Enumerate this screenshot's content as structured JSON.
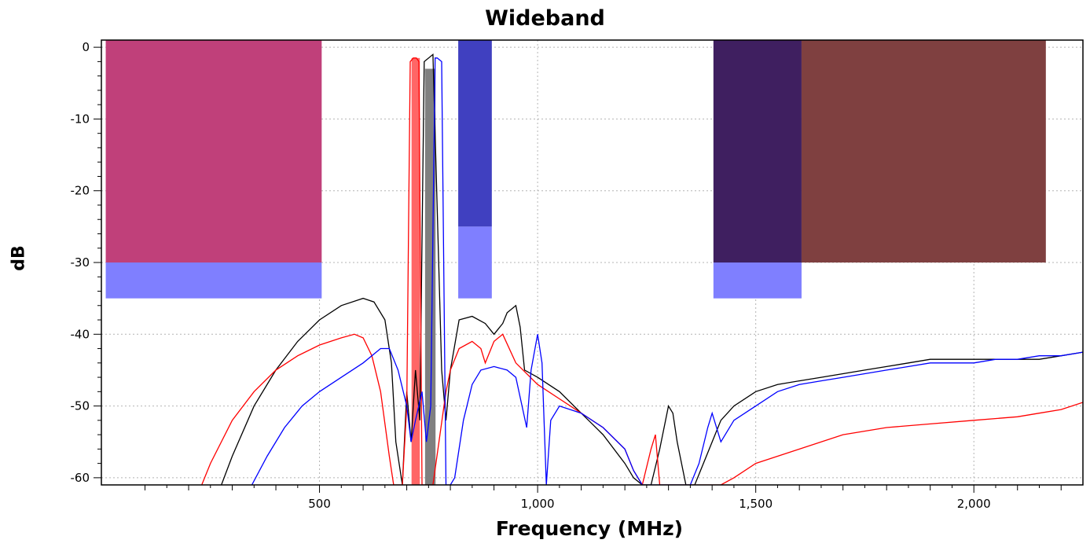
{
  "chart_data": {
    "type": "line",
    "title": "Wideband",
    "xlabel": "Frequency (MHz)",
    "ylabel": "dB",
    "xlim": [
      0,
      2250
    ],
    "ylim": [
      -61,
      1
    ],
    "x_ticks": [
      500,
      1000,
      1500,
      2000
    ],
    "x_tick_labels": [
      "500",
      "1,000",
      "1,500",
      "2,000"
    ],
    "y_ticks": [
      0,
      -10,
      -20,
      -30,
      -40,
      -50,
      -60
    ],
    "y_tick_labels": [
      "0",
      "-10",
      "-20",
      "-30",
      "-40",
      "-50",
      "-60"
    ],
    "grid": true,
    "masks": [
      {
        "x0": 10,
        "x1": 505,
        "y_top": 1,
        "y_bottom": -30,
        "color": "#c0407a"
      },
      {
        "x0": 10,
        "x1": 505,
        "y_top": -30,
        "y_bottom": -35,
        "color": "#7f7fff"
      },
      {
        "x0": 818,
        "x1": 895,
        "y_top": 1,
        "y_bottom": -25,
        "color": "#4040c0"
      },
      {
        "x0": 818,
        "x1": 895,
        "y_top": -25,
        "y_bottom": -35,
        "color": "#7f7fff"
      },
      {
        "x0": 1403,
        "x1": 1605,
        "y_top": 1,
        "y_bottom": -30,
        "color": "#3f1f60"
      },
      {
        "x0": 1403,
        "x1": 1605,
        "y_top": -30,
        "y_bottom": -35,
        "color": "#7f7fff"
      },
      {
        "x0": 1605,
        "x1": 2165,
        "y_top": 1,
        "y_bottom": -30,
        "color": "#7f4040"
      },
      {
        "x0": 711,
        "x1": 730,
        "y_top": -1.5,
        "y_bottom": -61,
        "color": "#ff6666"
      },
      {
        "x0": 742,
        "x1": 766,
        "y_top": -3,
        "y_bottom": -61,
        "color": "#808080"
      }
    ],
    "series": [
      {
        "color": "#000000",
        "x": [
          275,
          300,
          350,
          400,
          450,
          500,
          550,
          600,
          625,
          650,
          665,
          675,
          690,
          700,
          710,
          720,
          730,
          740,
          760,
          780,
          790,
          800,
          820,
          850,
          880,
          900,
          920,
          930,
          950,
          960,
          970,
          1000,
          1050,
          1100,
          1150,
          1200,
          1220,
          1240,
          1260,
          1280,
          1300,
          1310,
          1320,
          1340,
          1360,
          1380,
          1400,
          1420,
          1450,
          1500,
          1550,
          1600,
          1650,
          1700,
          1750,
          1800,
          1850,
          1900,
          1950,
          2000,
          2050,
          2100,
          2150,
          2200,
          2250
        ],
        "y": [
          -61,
          -57,
          -50,
          -45,
          -41,
          -38,
          -36,
          -35,
          -35.5,
          -38,
          -44,
          -55,
          -61,
          -48,
          -55,
          -45,
          -52,
          -2,
          -1,
          -45,
          -52,
          -45,
          -38,
          -37.5,
          -38.5,
          -40,
          -38.5,
          -37,
          -36,
          -39,
          -45,
          -46,
          -48,
          -51,
          -54,
          -58,
          -60,
          -61,
          -61,
          -56,
          -50,
          -51,
          -55,
          -61,
          -61,
          -58,
          -55,
          -52,
          -50,
          -48,
          -47,
          -46.5,
          -46,
          -45.5,
          -45,
          -44.5,
          -44,
          -43.5,
          -43.5,
          -43.5,
          -43.5,
          -43.5,
          -43.5,
          -43,
          -42.5
        ]
      },
      {
        "color": "#ff0000",
        "x": [
          230,
          250,
          300,
          350,
          400,
          450,
          500,
          550,
          580,
          600,
          620,
          640,
          660,
          670,
          680,
          690,
          700,
          708,
          715,
          722,
          728,
          735,
          760,
          790,
          800,
          820,
          850,
          870,
          880,
          900,
          920,
          950,
          1000,
          1050,
          1100,
          1150,
          1200,
          1220,
          1240,
          1260,
          1270,
          1280,
          1300,
          1350,
          1400,
          1420,
          1450,
          1500,
          1600,
          1700,
          1800,
          1900,
          2000,
          2100,
          2150,
          2200,
          2250
        ],
        "y": [
          -61,
          -58,
          -52,
          -48,
          -45,
          -43,
          -41.5,
          -40.5,
          -40,
          -40.5,
          -43,
          -48,
          -57,
          -61,
          -61,
          -61,
          -50,
          -2,
          -1.5,
          -1.5,
          -2,
          -61,
          -61,
          -48,
          -45,
          -42,
          -41,
          -42,
          -44,
          -41,
          -40,
          -44,
          -47,
          -49,
          -51,
          -53,
          -56,
          -59,
          -61,
          -56,
          -54,
          -61,
          -61,
          -61,
          -61,
          -61,
          -60,
          -58,
          -56,
          -54,
          -53,
          -52.5,
          -52,
          -51.5,
          -51,
          -50.5,
          -49.5
        ]
      },
      {
        "color": "#0000ff",
        "x": [
          345,
          380,
          420,
          460,
          500,
          550,
          600,
          640,
          660,
          680,
          700,
          710,
          720,
          735,
          745,
          755,
          765,
          770,
          780,
          790,
          800,
          810,
          830,
          850,
          870,
          900,
          930,
          950,
          975,
          985,
          1000,
          1010,
          1020,
          1030,
          1050,
          1100,
          1150,
          1200,
          1220,
          1240,
          1260,
          1300,
          1350,
          1370,
          1390,
          1400,
          1420,
          1450,
          1500,
          1550,
          1600,
          1650,
          1700,
          1750,
          1800,
          1850,
          1900,
          1950,
          2000,
          2050,
          2100,
          2150,
          2200,
          2250,
          2260
        ],
        "y": [
          -61,
          -57,
          -53,
          -50,
          -48,
          -46,
          -44,
          -42,
          -42,
          -45,
          -50,
          -55,
          -52,
          -48,
          -55,
          -50,
          -1.5,
          -1.5,
          -2,
          -61,
          -61,
          -60,
          -52,
          -47,
          -45,
          -44.5,
          -45,
          -46,
          -53,
          -45,
          -40,
          -44,
          -61,
          -52,
          -50,
          -51,
          -53,
          -56,
          -59,
          -61,
          -61,
          -61,
          -61,
          -58,
          -53,
          -51,
          -55,
          -52,
          -50,
          -48,
          -47,
          -46.5,
          -46,
          -45.5,
          -45,
          -44.5,
          -44,
          -44,
          -44,
          -43.5,
          -43.5,
          -43,
          -43,
          -42.5,
          -61
        ]
      }
    ]
  }
}
